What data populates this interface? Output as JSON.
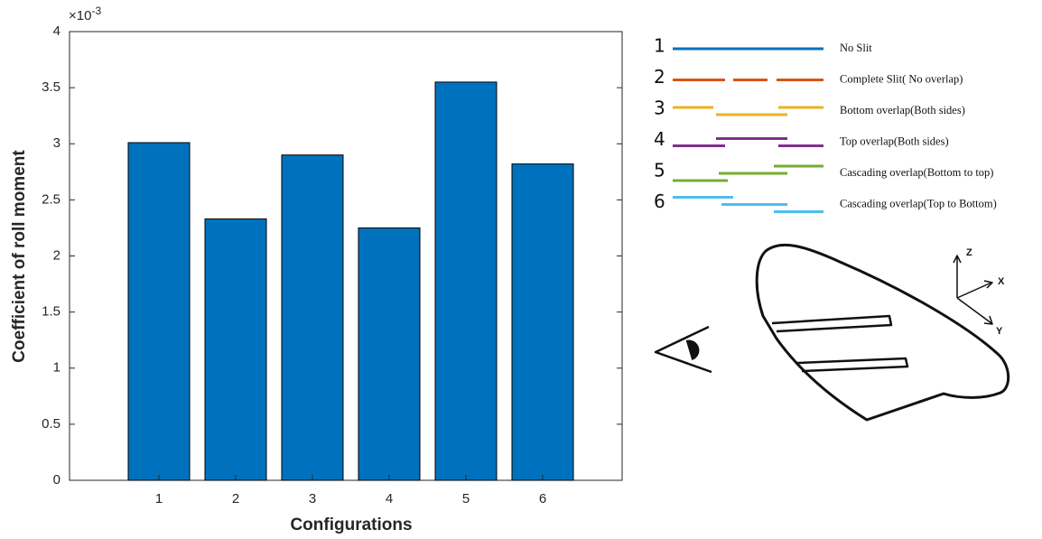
{
  "chart_data": {
    "type": "bar",
    "y_label": "Coefficient of roll moment",
    "x_label": "Configurations",
    "y_multiplier": {
      "base": "×10",
      "exponent": "-3"
    },
    "categories": [
      "1",
      "2",
      "3",
      "4",
      "5",
      "6"
    ],
    "values": [
      3.01,
      2.33,
      2.9,
      2.25,
      3.55,
      2.82
    ],
    "color": "#0072bd",
    "ylim": [
      0,
      4
    ],
    "yticks": [
      0,
      0.5,
      1,
      1.5,
      2,
      2.5,
      3,
      3.5,
      4
    ],
    "grid": false
  },
  "legend_diagram": {
    "rows": [
      {
        "number": "1",
        "label": "No Slit",
        "color": "#0072bd"
      },
      {
        "number": "2",
        "label": "Complete Slit( No overlap)",
        "color": "#d95319"
      },
      {
        "number": "3",
        "label": "Bottom overlap(Both sides)",
        "color": "#edb120"
      },
      {
        "number": "4",
        "label": "Top overlap(Both sides)",
        "color": "#7e2f8e"
      },
      {
        "number": "5",
        "label": "Cascading overlap(Bottom to top)",
        "color": "#77ac30"
      },
      {
        "number": "6",
        "label": "Cascading overlap(Top to Bottom)",
        "color": "#4dbeee"
      }
    ]
  },
  "wing_sketch": {
    "axis_labels": [
      "Z",
      "X",
      "Y"
    ]
  }
}
